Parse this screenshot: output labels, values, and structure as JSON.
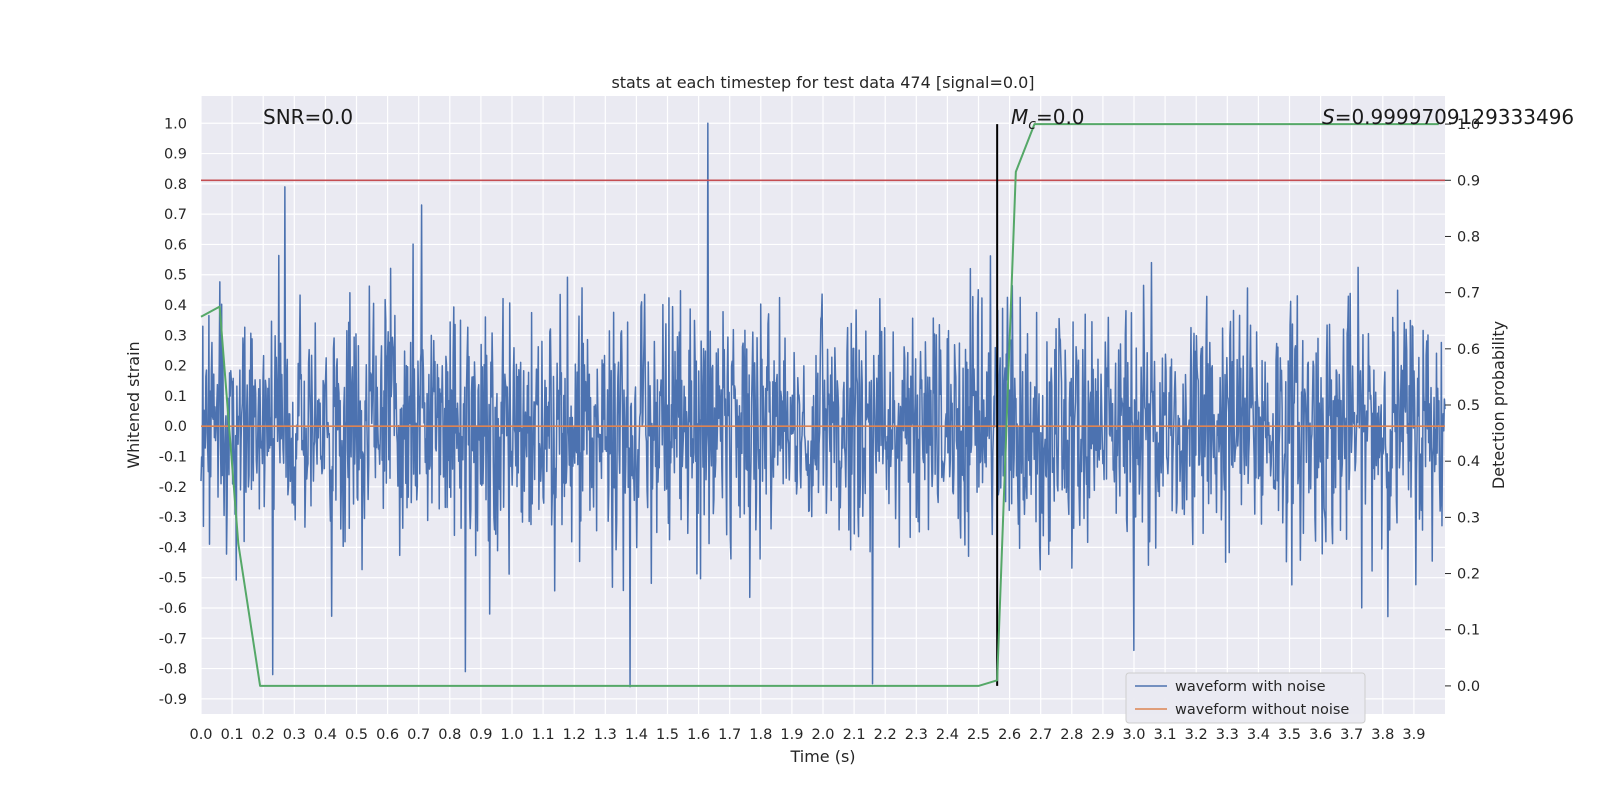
{
  "chart_data": {
    "type": "line",
    "title": "stats at each timestep for test data 474 [signal=0.0]",
    "xlabel": "Time (s)",
    "ylabel": "Whitened strain",
    "y2label": "Detection probability",
    "xlim": [
      0.0,
      4.0
    ],
    "ylim": [
      -0.95,
      1.09
    ],
    "y2lim": [
      -0.05,
      1.05
    ],
    "xticks": [
      "0.0",
      "0.1",
      "0.2",
      "0.3",
      "0.4",
      "0.5",
      "0.6",
      "0.7",
      "0.8",
      "0.9",
      "1.0",
      "1.1",
      "1.2",
      "1.3",
      "1.4",
      "1.5",
      "1.6",
      "1.7",
      "1.8",
      "1.9",
      "2.0",
      "2.1",
      "2.2",
      "2.3",
      "2.4",
      "2.5",
      "2.6",
      "2.7",
      "2.8",
      "2.9",
      "3.0",
      "3.1",
      "3.2",
      "3.3",
      "3.4",
      "3.5",
      "3.6",
      "3.7",
      "3.8",
      "3.9"
    ],
    "yticks": [
      "1.0",
      "0.9",
      "0.8",
      "0.7",
      "0.6",
      "0.5",
      "0.4",
      "0.3",
      "0.2",
      "0.1",
      "0.0",
      "-0.1",
      "-0.2",
      "-0.3",
      "-0.4",
      "-0.5",
      "-0.6",
      "-0.7",
      "-0.8",
      "-0.9"
    ],
    "y2ticks": [
      "1.0",
      "0.9",
      "0.8",
      "0.7",
      "0.6",
      "0.5",
      "0.4",
      "0.3",
      "0.2",
      "0.1",
      "0.0"
    ],
    "grid": true,
    "legend_position": "bottom-right",
    "series": [
      {
        "name": "waveform with noise",
        "axis": "left",
        "color": "#4c72b0",
        "peaks": [
          {
            "x": 0.27,
            "y": 0.79
          },
          {
            "x": 0.71,
            "y": 0.73
          },
          {
            "x": 1.63,
            "y": 1.0
          },
          {
            "x": 0.23,
            "y": -0.82
          },
          {
            "x": 0.85,
            "y": -0.81
          },
          {
            "x": 1.38,
            "y": -0.86
          },
          {
            "x": 2.16,
            "y": -0.85
          },
          {
            "x": 3.0,
            "y": -0.74
          }
        ]
      },
      {
        "name": "waveform without noise",
        "axis": "left",
        "color": "#dd8452",
        "x": [
          0.0,
          4.0
        ],
        "values": [
          0.0,
          0.0
        ]
      },
      {
        "axis": "right",
        "color": "#55a868",
        "x": [
          0.0,
          0.06,
          0.12,
          0.19,
          0.25,
          2.5,
          2.56,
          2.62,
          2.68,
          3.98
        ],
        "values": [
          0.657,
          0.675,
          0.253,
          0.0,
          0.0,
          0.0,
          0.01,
          0.915,
          1.0,
          1.0
        ]
      }
    ],
    "hlines": [
      {
        "axis": "right",
        "y": 0.9,
        "color": "#c44e52"
      }
    ],
    "vlines": [
      {
        "x": 2.56,
        "y_from": 0.0,
        "y_to": 1.0,
        "color": "#000000"
      }
    ],
    "annotations": [
      {
        "text": "SNR=0.0"
      },
      {
        "text": "=0.0",
        "prefix_math": "M",
        "sub": "c"
      },
      {
        "text": "=0.9999709129333496",
        "prefix_math": "S"
      }
    ]
  }
}
